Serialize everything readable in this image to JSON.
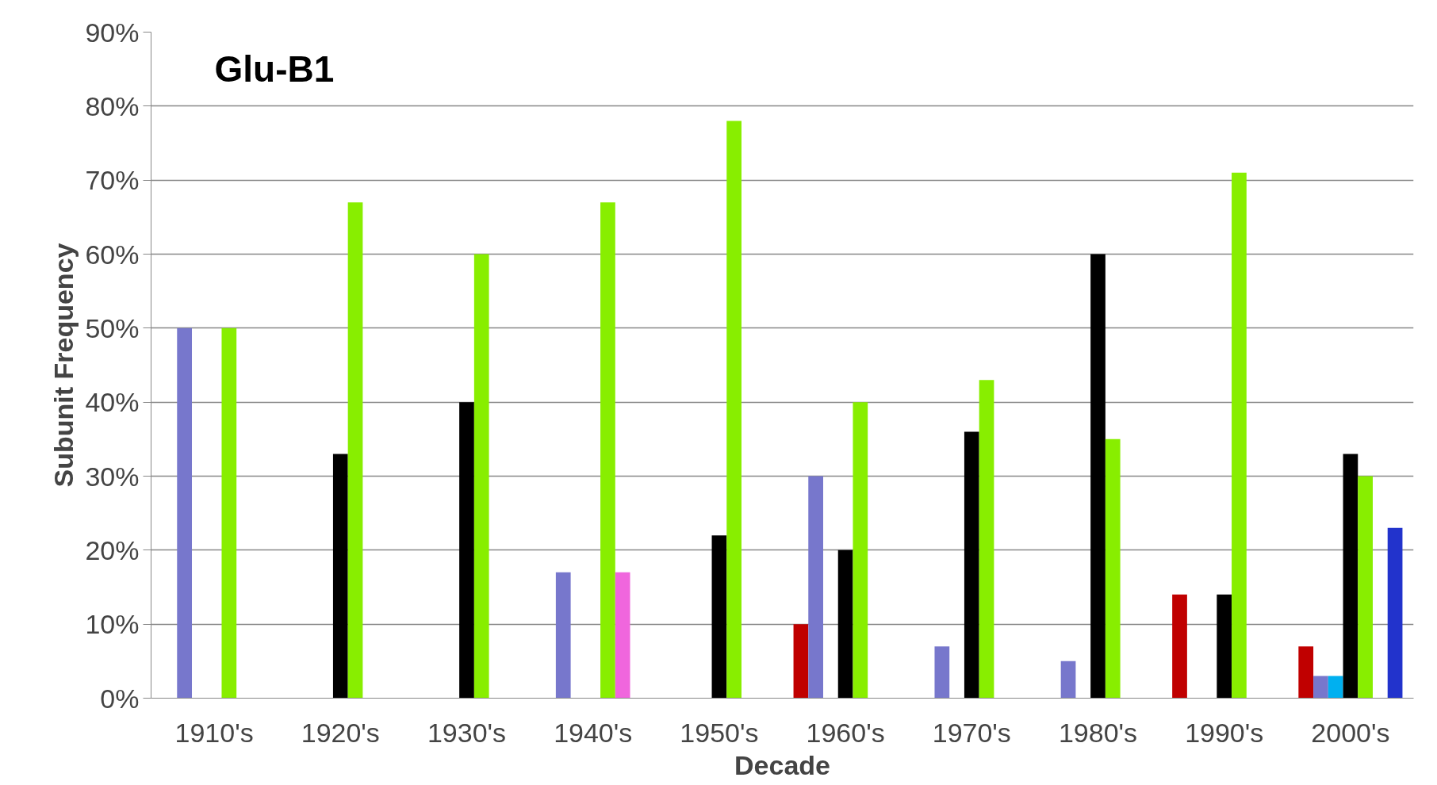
{
  "chart_data": {
    "type": "bar",
    "title": "Glu-B1",
    "xlabel": "Decade",
    "ylabel": "Subunit Frequency",
    "categories": [
      "1910's",
      "1920's",
      "1930's",
      "1940's",
      "1950's",
      "1960's",
      "1970's",
      "1980's",
      "1990's",
      "2000's"
    ],
    "series": [
      {
        "color": "#c00000",
        "values": [
          null,
          null,
          null,
          null,
          null,
          10,
          null,
          null,
          14,
          7
        ]
      },
      {
        "color": "#7777cc",
        "values": [
          50,
          null,
          null,
          17,
          null,
          30,
          7,
          5,
          null,
          3
        ]
      },
      {
        "color": "#00b0f0",
        "values": [
          null,
          null,
          null,
          null,
          null,
          null,
          null,
          null,
          null,
          3
        ]
      },
      {
        "color": "#000000",
        "values": [
          null,
          33,
          40,
          null,
          22,
          20,
          36,
          60,
          14,
          33
        ]
      },
      {
        "color": "#88ee00",
        "values": [
          50,
          67,
          60,
          67,
          78,
          40,
          43,
          35,
          71,
          30
        ]
      },
      {
        "color": "#f066dd",
        "values": [
          null,
          null,
          null,
          17,
          null,
          null,
          null,
          null,
          null,
          null
        ]
      },
      {
        "color": "#2233cc",
        "values": [
          null,
          null,
          null,
          null,
          null,
          null,
          null,
          null,
          null,
          23
        ]
      }
    ],
    "ylim": [
      0,
      90
    ],
    "yticks": [
      {
        "value": 0,
        "label": "0%"
      },
      {
        "value": 10,
        "label": "10%"
      },
      {
        "value": 20,
        "label": "20%"
      },
      {
        "value": 30,
        "label": "30%"
      },
      {
        "value": 40,
        "label": "40%"
      },
      {
        "value": 50,
        "label": "50%"
      },
      {
        "value": 60,
        "label": "60%"
      },
      {
        "value": 70,
        "label": "70%"
      },
      {
        "value": 80,
        "label": "80%"
      },
      {
        "value": 90,
        "label": "90%"
      }
    ],
    "grid": "y"
  }
}
